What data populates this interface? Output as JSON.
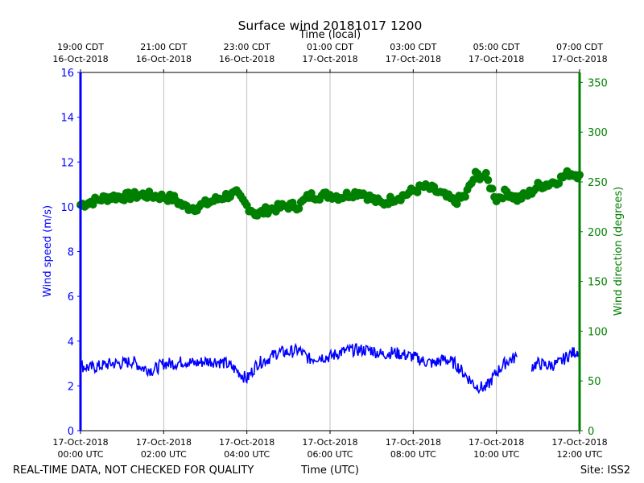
{
  "chart_data": {
    "type": "line",
    "title": "Surface wind 20181017 1200",
    "top_xlabel": "Time (local)",
    "xlabel": "Time (UTC)",
    "ylabel_left": "Wind speed (m/s)",
    "ylabel_right": "Wind direction (degrees)",
    "x_range_hours_utc": [
      0,
      12
    ],
    "ylim_left": [
      0,
      16
    ],
    "ylim_right": [
      0,
      360
    ],
    "grid": "vertical",
    "bottom_ticks": [
      {
        "hour": 0,
        "date": "17-Oct-2018",
        "time": "00:00 UTC"
      },
      {
        "hour": 2,
        "date": "17-Oct-2018",
        "time": "02:00 UTC"
      },
      {
        "hour": 4,
        "date": "17-Oct-2018",
        "time": "04:00 UTC"
      },
      {
        "hour": 6,
        "date": "17-Oct-2018",
        "time": "06:00 UTC"
      },
      {
        "hour": 8,
        "date": "17-Oct-2018",
        "time": "08:00 UTC"
      },
      {
        "hour": 10,
        "date": "17-Oct-2018",
        "time": "10:00 UTC"
      },
      {
        "hour": 12,
        "date": "17-Oct-2018",
        "time": "12:00 UTC"
      }
    ],
    "top_ticks": [
      {
        "hour": 0,
        "time": "19:00 CDT",
        "date": "16-Oct-2018"
      },
      {
        "hour": 2,
        "time": "21:00 CDT",
        "date": "16-Oct-2018"
      },
      {
        "hour": 4,
        "time": "23:00 CDT",
        "date": "16-Oct-2018"
      },
      {
        "hour": 6,
        "time": "01:00 CDT",
        "date": "17-Oct-2018"
      },
      {
        "hour": 8,
        "time": "03:00 CDT",
        "date": "17-Oct-2018"
      },
      {
        "hour": 10,
        "time": "05:00 CDT",
        "date": "17-Oct-2018"
      },
      {
        "hour": 12,
        "time": "07:00 CDT",
        "date": "17-Oct-2018"
      }
    ],
    "left_ticks": [
      "0",
      "2",
      "4",
      "6",
      "8",
      "10",
      "12",
      "14",
      "16"
    ],
    "right_ticks": [
      "0",
      "50",
      "100",
      "150",
      "200",
      "250",
      "300",
      "350"
    ],
    "series": [
      {
        "name": "Wind speed",
        "axis": "left",
        "style": "line",
        "color": "#0000ff",
        "points": [
          [
            0.0,
            2.9
          ],
          [
            0.25,
            2.8
          ],
          [
            0.5,
            2.9
          ],
          [
            0.75,
            3.0
          ],
          [
            1.0,
            3.0
          ],
          [
            1.25,
            3.1
          ],
          [
            1.5,
            2.8
          ],
          [
            1.75,
            2.7
          ],
          [
            2.0,
            3.0
          ],
          [
            2.25,
            3.0
          ],
          [
            2.5,
            3.1
          ],
          [
            2.75,
            3.0
          ],
          [
            3.0,
            3.1
          ],
          [
            3.25,
            3.1
          ],
          [
            3.5,
            3.0
          ],
          [
            3.75,
            2.7
          ],
          [
            4.0,
            2.3
          ],
          [
            4.25,
            3.0
          ],
          [
            4.5,
            3.2
          ],
          [
            4.75,
            3.5
          ],
          [
            5.0,
            3.5
          ],
          [
            5.25,
            3.6
          ],
          [
            5.5,
            3.2
          ],
          [
            5.75,
            3.3
          ],
          [
            6.0,
            3.3
          ],
          [
            6.25,
            3.5
          ],
          [
            6.5,
            3.6
          ],
          [
            6.75,
            3.6
          ],
          [
            7.0,
            3.6
          ],
          [
            7.25,
            3.4
          ],
          [
            7.5,
            3.5
          ],
          [
            7.75,
            3.4
          ],
          [
            8.0,
            3.3
          ],
          [
            8.25,
            3.1
          ],
          [
            8.5,
            3.0
          ],
          [
            8.75,
            3.2
          ],
          [
            9.0,
            3.0
          ],
          [
            9.25,
            2.5
          ],
          [
            9.5,
            2.0
          ],
          [
            9.75,
            1.9
          ],
          [
            10.0,
            2.6
          ],
          [
            10.25,
            3.1
          ],
          [
            10.5,
            3.3
          ],
          null,
          [
            10.85,
            2.9
          ],
          [
            11.0,
            3.0
          ],
          [
            11.25,
            2.9
          ],
          [
            11.5,
            3.0
          ],
          [
            11.75,
            3.4
          ],
          [
            12.0,
            3.6
          ]
        ]
      },
      {
        "name": "Wind direction",
        "axis": "right",
        "style": "markers",
        "color": "#008000",
        "points": [
          [
            0.0,
            227
          ],
          [
            0.25,
            230
          ],
          [
            0.5,
            233
          ],
          [
            0.75,
            235
          ],
          [
            1.0,
            235
          ],
          [
            1.25,
            236
          ],
          [
            1.5,
            237
          ],
          [
            1.75,
            236
          ],
          [
            2.0,
            235
          ],
          [
            2.25,
            233
          ],
          [
            2.5,
            225
          ],
          [
            2.75,
            224
          ],
          [
            3.0,
            228
          ],
          [
            3.25,
            232
          ],
          [
            3.5,
            236
          ],
          [
            3.75,
            238
          ],
          [
            4.0,
            226
          ],
          [
            4.25,
            217
          ],
          [
            4.5,
            222
          ],
          [
            4.75,
            224
          ],
          [
            5.0,
            226
          ],
          [
            5.25,
            226
          ],
          [
            5.5,
            236
          ],
          [
            5.75,
            236
          ],
          [
            6.0,
            237
          ],
          [
            6.25,
            235
          ],
          [
            6.5,
            238
          ],
          [
            6.75,
            240
          ],
          [
            7.0,
            233
          ],
          [
            7.25,
            228
          ],
          [
            7.5,
            233
          ],
          [
            7.75,
            236
          ],
          [
            8.0,
            241
          ],
          [
            8.25,
            245
          ],
          [
            8.5,
            242
          ],
          [
            8.75,
            236
          ],
          [
            9.0,
            230
          ],
          [
            9.25,
            236
          ],
          [
            9.5,
            257
          ],
          [
            9.75,
            255
          ],
          [
            10.0,
            233
          ],
          [
            10.25,
            240
          ],
          [
            10.5,
            233
          ],
          [
            10.75,
            237
          ],
          [
            11.0,
            246
          ],
          [
            11.25,
            248
          ],
          [
            11.5,
            252
          ],
          [
            11.75,
            259
          ],
          [
            12.0,
            257
          ]
        ]
      }
    ]
  },
  "footer": {
    "left_note": "REAL-TIME DATA, NOT CHECKED FOR QUALITY",
    "site": "Site: ISS2"
  }
}
